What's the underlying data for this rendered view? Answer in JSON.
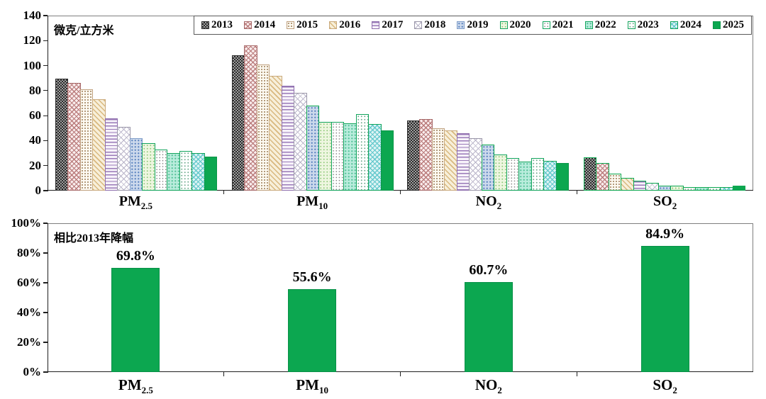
{
  "accent_green": "#0ca750",
  "chart_data": [
    {
      "type": "bar",
      "title": "微克/立方米",
      "ylabel": "微克/立方米",
      "ylim": [
        0,
        140
      ],
      "yticks": [
        0,
        20,
        40,
        60,
        80,
        100,
        120,
        140
      ],
      "grid": false,
      "legend_position": "top-inside",
      "categories": [
        "PM2.5",
        "PM10",
        "NO2",
        "SO2"
      ],
      "categories_rich": [
        {
          "base": "PM",
          "sub": "2.5"
        },
        {
          "base": "PM",
          "sub": "10"
        },
        {
          "base": "NO",
          "sub": "2"
        },
        {
          "base": "SO",
          "sub": "2"
        }
      ],
      "series": [
        {
          "name": "2013",
          "values": [
            89.5,
            108,
            56,
            26.5
          ]
        },
        {
          "name": "2014",
          "values": [
            86,
            116,
            57,
            22
          ]
        },
        {
          "name": "2015",
          "values": [
            81,
            101,
            50,
            13.5
          ]
        },
        {
          "name": "2016",
          "values": [
            73,
            92,
            48,
            10
          ]
        },
        {
          "name": "2017",
          "values": [
            58,
            84,
            46,
            8
          ]
        },
        {
          "name": "2018",
          "values": [
            51,
            78,
            42,
            6
          ]
        },
        {
          "name": "2019",
          "values": [
            42,
            68,
            37,
            4
          ]
        },
        {
          "name": "2020",
          "values": [
            38,
            55,
            29,
            4
          ]
        },
        {
          "name": "2021",
          "values": [
            33,
            55,
            26,
            3
          ]
        },
        {
          "name": "2022",
          "values": [
            30,
            54,
            23,
            3
          ]
        },
        {
          "name": "2023",
          "values": [
            32,
            61,
            26,
            3
          ]
        },
        {
          "name": "2024",
          "values": [
            30,
            53,
            24,
            3
          ]
        },
        {
          "name": "2025",
          "values": [
            27,
            48,
            22,
            4
          ]
        }
      ]
    },
    {
      "type": "bar",
      "title": "相比2013年降幅",
      "ylim": [
        0,
        100
      ],
      "ytick_labels": [
        "0%",
        "20%",
        "40%",
        "60%",
        "80%",
        "100%"
      ],
      "grid": false,
      "categories": [
        "PM2.5",
        "PM10",
        "NO2",
        "SO2"
      ],
      "categories_rich": [
        {
          "base": "PM",
          "sub": "2.5"
        },
        {
          "base": "PM",
          "sub": "10"
        },
        {
          "base": "NO",
          "sub": "2"
        },
        {
          "base": "SO",
          "sub": "2"
        }
      ],
      "values": [
        69.8,
        55.6,
        60.7,
        84.9
      ],
      "bar_labels": [
        "69.8%",
        "55.6%",
        "60.7%",
        "84.9%"
      ],
      "bar_color": "#0ca750"
    }
  ]
}
